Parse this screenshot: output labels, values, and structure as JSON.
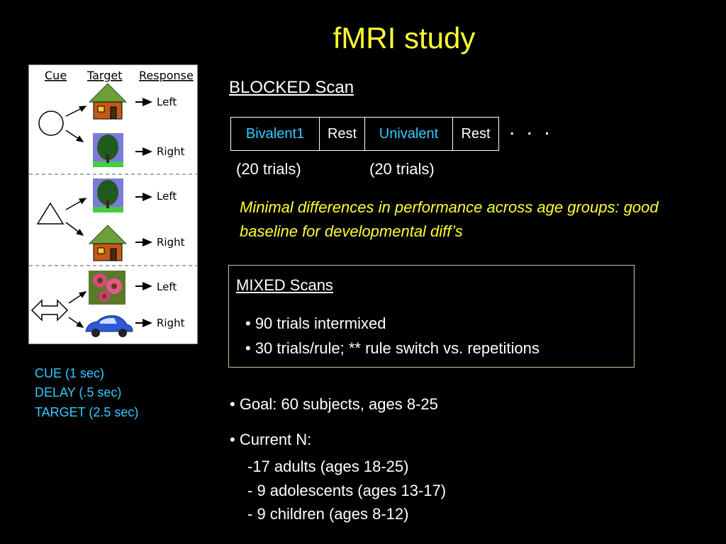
{
  "title": "fMRI study",
  "diagram": {
    "headers": [
      "Cue",
      "Target",
      "Response"
    ],
    "rows": [
      {
        "cue": "circle",
        "targets": [
          {
            "icon": "house-icon",
            "response": "Left"
          },
          {
            "icon": "tree-icon",
            "response": "Right"
          }
        ]
      },
      {
        "cue": "triangle",
        "targets": [
          {
            "icon": "tree-icon",
            "response": "Left"
          },
          {
            "icon": "house-icon",
            "response": "Right"
          }
        ]
      },
      {
        "cue": "double-arrow",
        "targets": [
          {
            "icon": "flower-icon",
            "response": "Left"
          },
          {
            "icon": "car-icon",
            "response": "Right"
          }
        ]
      }
    ]
  },
  "timing": [
    "CUE (1 sec)",
    "DELAY (.5 sec)",
    "TARGET (2.5 sec)"
  ],
  "blocked": {
    "title": "BLOCKED Scan",
    "cells": [
      "Bivalent1",
      "Rest",
      "Univalent",
      "Rest"
    ],
    "ellipsis": ". . .",
    "trials": [
      "(20 trials)",
      "(20 trials)"
    ],
    "note": "Minimal differences in performance across age groups: good baseline for developmental diff’s"
  },
  "mixed": {
    "title": "MIXED Scans",
    "bullets": [
      "• 90 trials intermixed",
      "• 30 trials/rule; ** rule switch vs. repetitions"
    ]
  },
  "goal": "• Goal: 60 subjects, ages 8-25",
  "current": {
    "label": "• Current N:",
    "lines": [
      "-17 adults (ages 18-25)",
      "- 9 adolescents (ages 13-17)",
      "- 9 children (ages 8-12)"
    ]
  },
  "colors": {
    "title": "#ffff33",
    "accent": "#33ccff",
    "note": "#ffff33"
  }
}
